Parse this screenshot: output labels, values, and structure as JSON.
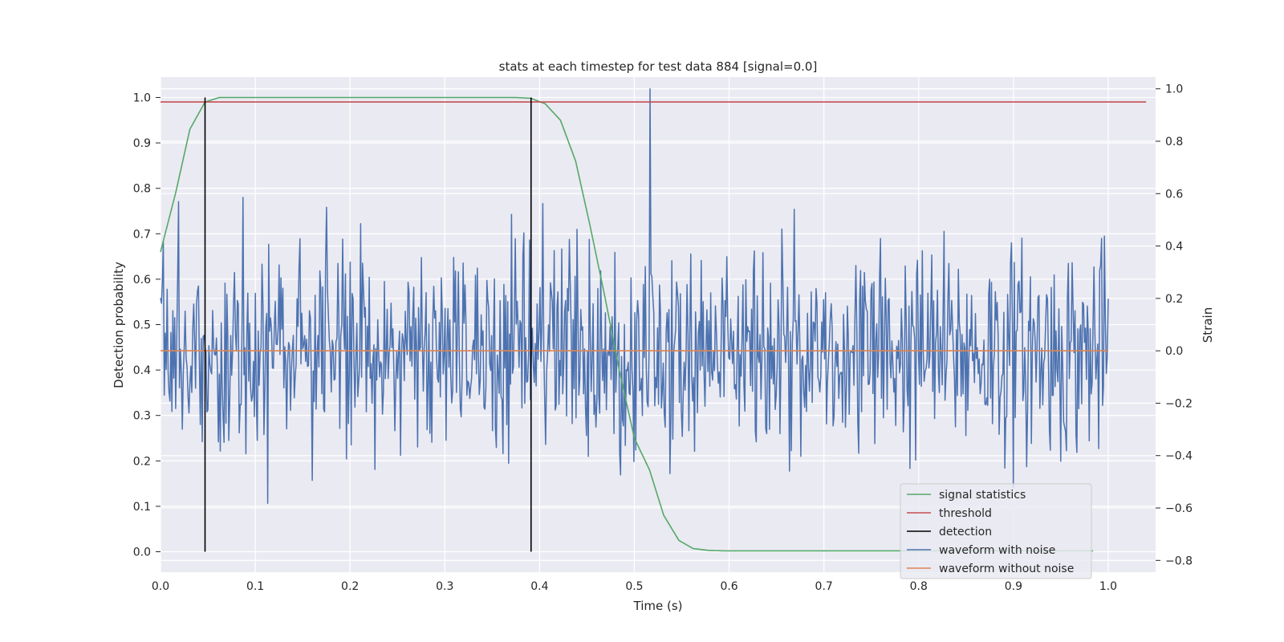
{
  "chart_data": {
    "type": "line",
    "title": "stats at each timestep for test data 884 [signal=0.0]",
    "xlabel": "Time (s)",
    "ylabel_left": "Detection probability",
    "ylabel_right": "Strain",
    "xlim": [
      0.0,
      1.05
    ],
    "ylim_left": [
      -0.045,
      1.045
    ],
    "ylim_right": [
      -0.845,
      1.045
    ],
    "x_ticks": [
      0.0,
      0.1,
      0.2,
      0.3,
      0.4,
      0.5,
      0.6,
      0.7,
      0.8,
      0.9,
      1.0
    ],
    "x_tick_labels": [
      "0.0",
      "0.1",
      "0.2",
      "0.3",
      "0.4",
      "0.5",
      "0.6",
      "0.7",
      "0.8",
      "0.9",
      "1.0"
    ],
    "y_left_ticks": [
      0.0,
      0.1,
      0.2,
      0.3,
      0.4,
      0.5,
      0.6,
      0.7,
      0.8,
      0.9,
      1.0
    ],
    "y_left_tick_labels": [
      "0.0",
      "0.1",
      "0.2",
      "0.3",
      "0.4",
      "0.5",
      "0.6",
      "0.7",
      "0.8",
      "0.9",
      "1.0"
    ],
    "y_right_ticks": [
      -0.8,
      -0.6,
      -0.4,
      -0.2,
      0.0,
      0.2,
      0.4,
      0.6,
      0.8,
      1.0
    ],
    "y_right_tick_labels": [
      "−0.8",
      "−0.6",
      "−0.4",
      "−0.2",
      "0.0",
      "0.2",
      "0.4",
      "0.6",
      "0.8",
      "1.0"
    ],
    "grid": true,
    "legend_position": "lower-right",
    "series": [
      {
        "name": "signal statistics",
        "axis": "left",
        "color": "#55a868",
        "x": [
          0.0,
          0.016,
          0.031,
          0.047,
          0.062,
          0.078,
          0.094,
          0.109,
          0.125,
          0.141,
          0.156,
          0.172,
          0.188,
          0.203,
          0.219,
          0.234,
          0.25,
          0.266,
          0.281,
          0.297,
          0.312,
          0.328,
          0.344,
          0.359,
          0.375,
          0.391,
          0.406,
          0.422,
          0.438,
          0.453,
          0.469,
          0.484,
          0.5,
          0.516,
          0.531,
          0.547,
          0.562,
          0.578,
          0.594,
          0.609,
          0.625,
          0.641,
          0.656,
          0.672,
          0.688,
          0.703,
          0.719,
          0.734,
          0.75,
          0.766,
          0.781,
          0.797,
          0.812,
          0.828,
          0.844,
          0.859,
          0.875,
          0.891,
          0.906,
          0.922,
          0.938,
          0.953,
          0.969,
          0.984
        ],
        "values": [
          0.66,
          0.79,
          0.93,
          0.99,
          1.0,
          1.0,
          1.0,
          1.0,
          1.0,
          1.0,
          1.0,
          1.0,
          1.0,
          1.0,
          1.0,
          1.0,
          1.0,
          1.0,
          1.0,
          1.0,
          1.0,
          1.0,
          1.0,
          1.0,
          1.0,
          0.998,
          0.986,
          0.95,
          0.86,
          0.72,
          0.56,
          0.4,
          0.25,
          0.18,
          0.08,
          0.025,
          0.007,
          0.003,
          0.002,
          0.002,
          0.002,
          0.002,
          0.002,
          0.002,
          0.002,
          0.002,
          0.002,
          0.002,
          0.002,
          0.002,
          0.002,
          0.002,
          0.002,
          0.002,
          0.002,
          0.002,
          0.002,
          0.002,
          0.002,
          0.002,
          0.002,
          0.002,
          0.002,
          0.002
        ]
      },
      {
        "name": "threshold",
        "axis": "left",
        "color": "#c44e52",
        "x": [
          0.0,
          1.04
        ],
        "values": [
          0.99,
          0.99
        ]
      },
      {
        "name": "detection",
        "axis": "left",
        "color": "#000000",
        "events": [
          0.047,
          0.391
        ],
        "range": [
          0.0,
          1.0
        ]
      },
      {
        "name": "waveform with noise",
        "axis": "right",
        "color": "#4c72b0",
        "x_range": [
          0.0,
          1.0
        ],
        "samples": 1000,
        "std": 0.2,
        "min": -0.775,
        "max": 1.0,
        "peak_x": 0.517
      },
      {
        "name": "waveform without noise",
        "axis": "right",
        "color": "#dd8452",
        "x": [
          0.0,
          1.0
        ],
        "values": [
          0.0,
          0.0
        ]
      }
    ]
  }
}
